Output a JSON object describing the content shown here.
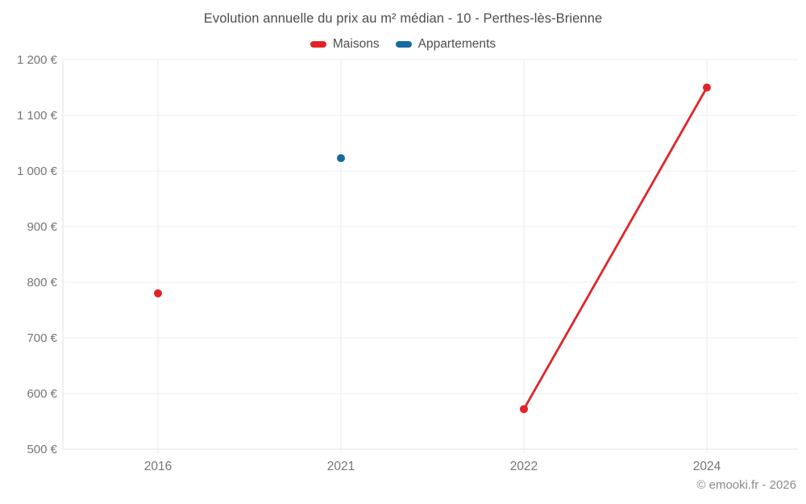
{
  "chart": {
    "title": "Evolution annuelle du prix au m² médian - 10 - Perthes-lès-Brienne",
    "footer": "© emooki.fr - 2026"
  },
  "chart_data": {
    "type": "line",
    "title": "Evolution annuelle du prix au m² médian - 10 - Perthes-lès-Brienne",
    "categories": [
      "2016",
      "2021",
      "2022",
      "2024"
    ],
    "series": [
      {
        "name": "Maisons",
        "color": "#e02429",
        "values": [
          780,
          null,
          572,
          1150
        ]
      },
      {
        "name": "Appartements",
        "color": "#176a9f",
        "values": [
          null,
          1023,
          null,
          null
        ]
      }
    ],
    "ylim": [
      500,
      1200
    ],
    "yticks": [
      {
        "value": 500,
        "label": "500 €"
      },
      {
        "value": 600,
        "label": "600 €"
      },
      {
        "value": 700,
        "label": "700 €"
      },
      {
        "value": 800,
        "label": "800 €"
      },
      {
        "value": 900,
        "label": "900 €"
      },
      {
        "value": 1000,
        "label": "1 000 €"
      },
      {
        "value": 1100,
        "label": "1 100 €"
      },
      {
        "value": 1200,
        "label": "1 200 €"
      }
    ],
    "grid": true,
    "legend_position": "top",
    "connect_nulls": false,
    "marker_radius": 5,
    "line_width": 2.8,
    "annotations": [
      "© emooki.fr - 2026"
    ]
  },
  "colors": {
    "grid": "#ededed",
    "axis": "#e0e0e0",
    "title_text": "#4d4d4d",
    "tick_text": "#757575",
    "footer_text": "#8a8a8a"
  }
}
